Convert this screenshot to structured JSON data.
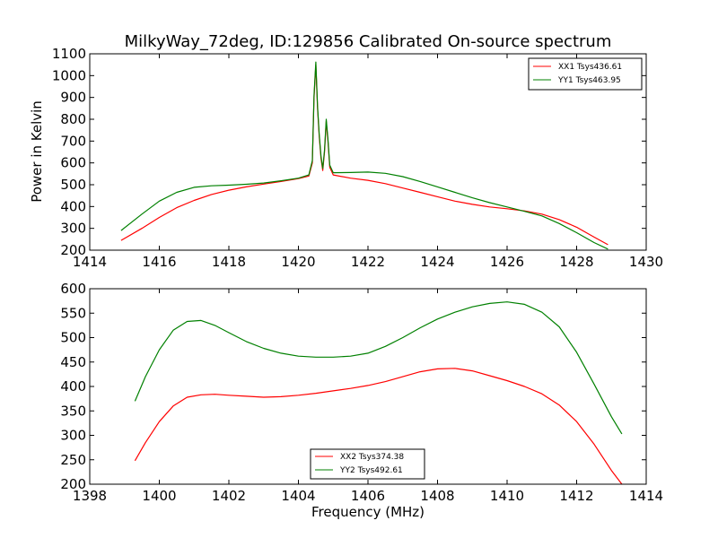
{
  "chart_data": [
    {
      "type": "line",
      "title": "MilkyWay_72deg, ID:129856 Calibrated On-source spectrum",
      "xlabel": "",
      "ylabel": "Power in Kelvin",
      "xlim": [
        1414,
        1430
      ],
      "ylim": [
        200,
        1100
      ],
      "xticks": [
        1414,
        1416,
        1418,
        1420,
        1422,
        1424,
        1426,
        1428,
        1430
      ],
      "yticks": [
        200,
        300,
        400,
        500,
        600,
        700,
        800,
        900,
        1000,
        1100
      ],
      "legend_position": "top-right",
      "series": [
        {
          "name": "XX1 Tsys436.61",
          "color": "#ff0000",
          "x": [
            1414.9,
            1415.5,
            1416,
            1416.5,
            1417,
            1417.5,
            1418,
            1418.5,
            1419,
            1419.5,
            1420,
            1420.3,
            1420.4,
            1420.45,
            1420.5,
            1420.55,
            1420.6,
            1420.65,
            1420.7,
            1420.75,
            1420.8,
            1420.85,
            1420.9,
            1421,
            1421.5,
            1422,
            1422.5,
            1423,
            1423.5,
            1424,
            1424.5,
            1425,
            1425.5,
            1426,
            1426.5,
            1427,
            1427.5,
            1428,
            1428.5,
            1428.9
          ],
          "y": [
            245,
            300,
            350,
            395,
            428,
            455,
            475,
            490,
            503,
            515,
            528,
            540,
            600,
            900,
            1050,
            850,
            720,
            620,
            565,
            650,
            790,
            700,
            580,
            545,
            530,
            520,
            505,
            485,
            465,
            445,
            425,
            410,
            398,
            390,
            380,
            365,
            340,
            305,
            260,
            225
          ]
        },
        {
          "name": "YY1 Tsys463.95",
          "color": "#008000",
          "x": [
            1414.9,
            1415.5,
            1416,
            1416.5,
            1417,
            1417.5,
            1418,
            1418.5,
            1419,
            1419.5,
            1420,
            1420.3,
            1420.4,
            1420.45,
            1420.5,
            1420.55,
            1420.6,
            1420.65,
            1420.7,
            1420.75,
            1420.8,
            1420.85,
            1420.9,
            1421,
            1421.5,
            1422,
            1422.5,
            1423,
            1423.5,
            1424,
            1424.5,
            1425,
            1425.5,
            1426,
            1426.5,
            1427,
            1427.5,
            1428,
            1428.5,
            1428.9
          ],
          "y": [
            290,
            365,
            425,
            465,
            488,
            495,
            498,
            502,
            508,
            518,
            530,
            545,
            610,
            910,
            1062,
            860,
            730,
            630,
            575,
            660,
            800,
            710,
            590,
            555,
            556,
            558,
            552,
            537,
            515,
            490,
            465,
            440,
            418,
            398,
            378,
            357,
            322,
            280,
            235,
            205
          ]
        }
      ]
    },
    {
      "type": "line",
      "title": "",
      "xlabel": "Frequency (MHz)",
      "ylabel": "",
      "xlim": [
        1398,
        1414
      ],
      "ylim": [
        200,
        600
      ],
      "xticks": [
        1398,
        1400,
        1402,
        1404,
        1406,
        1408,
        1410,
        1412,
        1414
      ],
      "yticks": [
        200,
        250,
        300,
        350,
        400,
        450,
        500,
        550,
        600
      ],
      "legend_position": "bottom-center",
      "series": [
        {
          "name": "XX2 Tsys374.38",
          "color": "#ff0000",
          "x": [
            1399.3,
            1399.6,
            1400,
            1400.4,
            1400.8,
            1401.2,
            1401.6,
            1402,
            1402.5,
            1403,
            1403.5,
            1404,
            1404.5,
            1405,
            1405.5,
            1406,
            1406.5,
            1407,
            1407.5,
            1408,
            1408.5,
            1409,
            1409.5,
            1410,
            1410.5,
            1411,
            1411.5,
            1412,
            1412.5,
            1413,
            1413.3
          ],
          "y": [
            248,
            285,
            328,
            360,
            378,
            383,
            384,
            382,
            380,
            378,
            379,
            382,
            386,
            391,
            396,
            402,
            410,
            420,
            430,
            436,
            437,
            432,
            422,
            412,
            400,
            385,
            362,
            328,
            282,
            228,
            200
          ]
        },
        {
          "name": "YY2 Tsys492.61",
          "color": "#008000",
          "x": [
            1399.3,
            1399.6,
            1400,
            1400.4,
            1400.8,
            1401.2,
            1401.6,
            1402,
            1402.5,
            1403,
            1403.5,
            1404,
            1404.5,
            1405,
            1405.5,
            1406,
            1406.5,
            1407,
            1407.5,
            1408,
            1408.5,
            1409,
            1409.5,
            1410,
            1410.5,
            1411,
            1411.5,
            1412,
            1412.5,
            1413,
            1413.3
          ],
          "y": [
            370,
            420,
            475,
            515,
            533,
            535,
            525,
            510,
            492,
            478,
            468,
            462,
            460,
            460,
            462,
            468,
            482,
            500,
            520,
            538,
            552,
            563,
            570,
            573,
            568,
            552,
            522,
            470,
            405,
            338,
            303
          ]
        }
      ]
    }
  ]
}
